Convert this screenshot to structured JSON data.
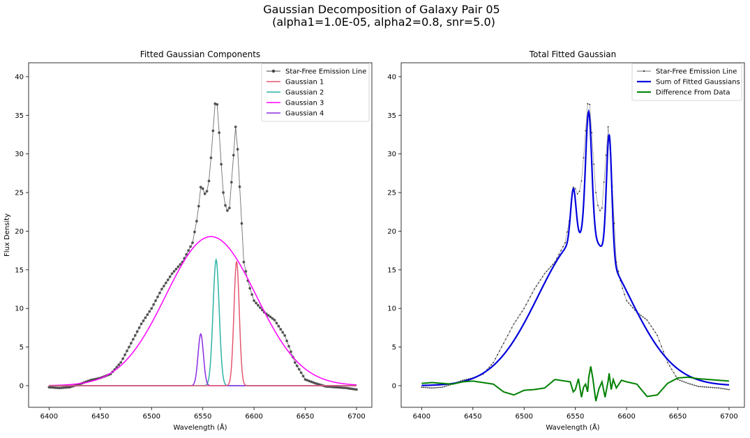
{
  "figure": {
    "title_line1": "Gaussian Decomposition of Galaxy Pair 05",
    "title_line2": "(alpha1=1.0E-05, alpha2=0.8, snr=5.0)"
  },
  "chart_data": [
    {
      "type": "line",
      "title": "Fitted Gaussian Components",
      "xlabel": "Wavelength (Å)",
      "ylabel": "Flux Density",
      "xlim": [
        6380,
        6715
      ],
      "ylim": [
        -2.8,
        41.8
      ],
      "xticks": [
        6400,
        6450,
        6500,
        6550,
        6600,
        6650,
        6700
      ],
      "yticks": [
        0,
        5,
        10,
        15,
        20,
        25,
        30,
        35,
        40
      ],
      "grid": false,
      "legend_position": "upper right",
      "data_series": {
        "name": "Star-Free Emission Line",
        "color": "#404040",
        "style": "line-with-dot-markers",
        "x": [
          6400,
          6410,
          6420,
          6430,
          6440,
          6450,
          6460,
          6470,
          6480,
          6490,
          6500,
          6510,
          6520,
          6530,
          6540,
          6545,
          6548,
          6550,
          6553,
          6556,
          6558,
          6560,
          6562,
          6563,
          6565,
          6567,
          6570,
          6573,
          6576,
          6579,
          6582,
          6583,
          6585,
          6587,
          6590,
          6595,
          6600,
          6610,
          6620,
          6630,
          6640,
          6650,
          6660,
          6670,
          6680,
          6690,
          6700
        ],
        "y": [
          -0.2,
          -0.3,
          -0.2,
          0.2,
          0.7,
          1.0,
          1.5,
          3.0,
          5.5,
          8.0,
          10.0,
          12.5,
          14.5,
          16.0,
          18.5,
          22.0,
          25.7,
          25.5,
          24.5,
          26.5,
          29.5,
          33.0,
          36.5,
          37.8,
          35.0,
          30.5,
          25.0,
          22.5,
          23.0,
          28.0,
          33.5,
          33.2,
          28.0,
          23.5,
          16.0,
          13.0,
          11.0,
          9.5,
          8.5,
          6.5,
          3.0,
          0.8,
          0.3,
          -0.1,
          -0.2,
          -0.3,
          -0.5
        ]
      },
      "components": [
        {
          "name": "Gaussian 1",
          "color": "#e4576e",
          "amplitude": 16.1,
          "mean": 6583,
          "sigma": 2.6
        },
        {
          "name": "Gaussian 2",
          "color": "#2bb3a6",
          "amplitude": 16.3,
          "mean": 6563,
          "sigma": 3.0
        },
        {
          "name": "Gaussian 3",
          "color": "#ff00ff",
          "amplitude": 19.3,
          "mean": 6558,
          "sigma": 44
        },
        {
          "name": "Gaussian 4",
          "color": "#8a2be2",
          "amplitude": 6.7,
          "mean": 6548,
          "sigma": 2.6
        }
      ]
    },
    {
      "type": "line",
      "title": "Total Fitted Gaussian",
      "xlabel": "Wavelength (Å)",
      "xlim": [
        6380,
        6715
      ],
      "ylim": [
        -2.8,
        41.8
      ],
      "xticks": [
        6400,
        6450,
        6500,
        6550,
        6600,
        6650,
        6700
      ],
      "yticks": [
        0,
        5,
        10,
        15,
        20,
        25,
        30,
        35,
        40
      ],
      "grid": false,
      "legend_position": "upper right",
      "series": [
        {
          "name": "Star-Free Emission Line",
          "color": "#404040",
          "style": "thin-line-small-markers"
        },
        {
          "name": "Sum of Fitted Gaussians",
          "color": "#0000dd",
          "style": "thick-line"
        },
        {
          "name": "Difference From Data",
          "color": "#008000",
          "style": "thick-line",
          "x": [
            6400,
            6410,
            6420,
            6430,
            6440,
            6450,
            6460,
            6470,
            6480,
            6490,
            6500,
            6510,
            6520,
            6530,
            6540,
            6545,
            6548,
            6550,
            6553,
            6556,
            6558,
            6560,
            6562,
            6563,
            6565,
            6567,
            6570,
            6573,
            6576,
            6579,
            6582,
            6583,
            6585,
            6587,
            6590,
            6595,
            6600,
            6610,
            6620,
            6630,
            6640,
            6650,
            6660,
            6670,
            6680,
            6690,
            6700
          ],
          "y": [
            0.3,
            0.4,
            0.3,
            0.2,
            0.5,
            0.6,
            0.4,
            0.2,
            -0.8,
            -1.2,
            -0.6,
            -0.5,
            -0.3,
            0.8,
            0.6,
            0.5,
            -0.8,
            -0.5,
            0.9,
            -1.5,
            -0.2,
            0.2,
            -0.8,
            1.0,
            2.5,
            1.0,
            -2.0,
            -0.4,
            0.5,
            -1.5,
            0.6,
            1.6,
            -0.5,
            0.8,
            -0.3,
            0.7,
            0.5,
            0.2,
            -1.4,
            -1.2,
            0.3,
            1.0,
            1.1,
            0.9,
            0.8,
            0.7,
            0.6
          ]
        }
      ]
    }
  ]
}
